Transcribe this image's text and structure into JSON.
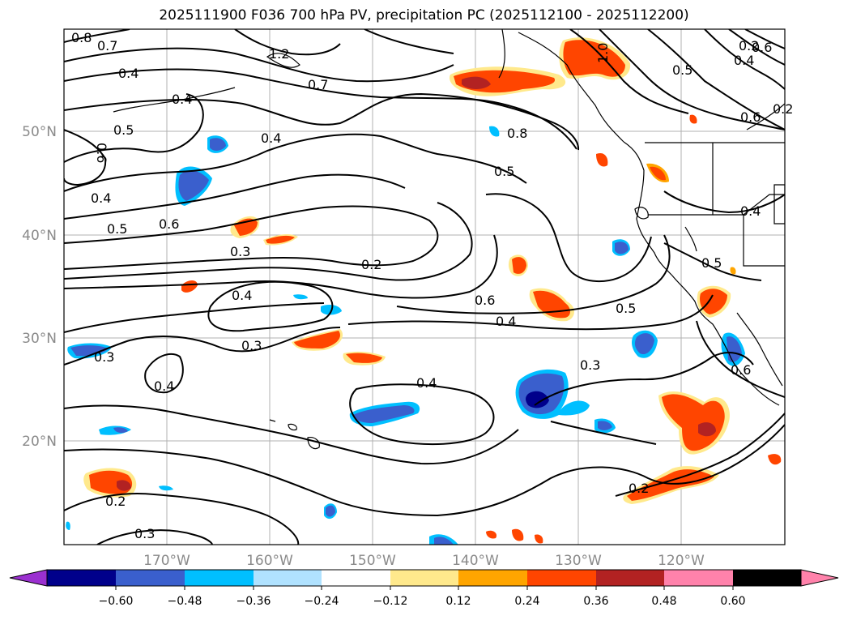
{
  "title": "2025111900 F036 700 hPa PV, precipitation PC (2025112100 - 2025112200)",
  "map": {
    "lon_labels": [
      "170°W",
      "160°W",
      "150°W",
      "140°W",
      "130°W",
      "120°W"
    ],
    "lat_labels": [
      "50°N",
      "40°N",
      "30°N",
      "20°N"
    ],
    "contour_labels": [
      "0.8",
      "0.7",
      "1.2",
      "0.7",
      "0.4",
      "0.5",
      "0.4",
      "0.6",
      "0.4",
      "0.5",
      "0.6",
      "0.3",
      "0.2",
      "0.8",
      "0.5",
      "1.0",
      "0.3",
      "0.4",
      "0.4",
      "0.6",
      "0.4",
      "0.5",
      "0.3",
      "0.4",
      "0.3",
      "0.2",
      "0.4",
      "0.2",
      "0.3",
      "0.5",
      "0.4",
      "0.5",
      "0.6",
      "0.6",
      "0.2",
      "0.6",
      "0.4",
      "0.2"
    ],
    "contour_color": "#000000",
    "grid": true,
    "coastline_color": "#000000"
  },
  "colorbar": {
    "ticks": [
      "−0.60",
      "−0.48",
      "−0.36",
      "−0.24",
      "−0.12",
      "0.12",
      "0.24",
      "0.36",
      "0.48",
      "0.60"
    ],
    "colors": [
      "#9b30d0",
      "#00008b",
      "#3a5fcd",
      "#00bfff",
      "#b0e2ff",
      "#ffffff",
      "#ffe98c",
      "#ffa500",
      "#ff4500",
      "#b22222",
      "#ff82ab"
    ],
    "extend": "both"
  }
}
